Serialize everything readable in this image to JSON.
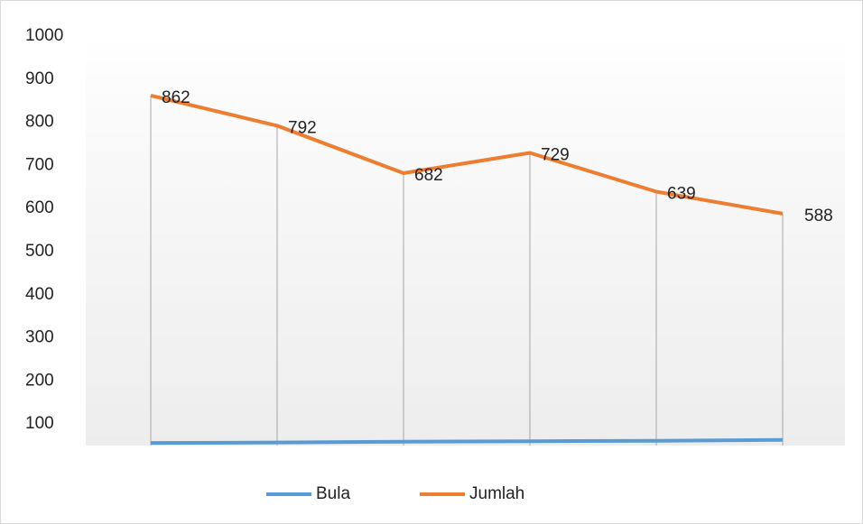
{
  "chart_data": {
    "type": "line",
    "categories": [
      null,
      null,
      null,
      null,
      null,
      null
    ],
    "series": [
      {
        "name": "Bula",
        "color": "#5b9bd5",
        "values": [
          56,
          57,
          59,
          60,
          61,
          63
        ]
      },
      {
        "name": "Jumlah",
        "color": "#ed7d31",
        "values": [
          862,
          792,
          682,
          729,
          639,
          588
        ]
      }
    ],
    "ylim": [
      50,
      1000
    ],
    "yticks": [
      100,
      200,
      300,
      400,
      500,
      600,
      700,
      800,
      900,
      1000
    ],
    "drop_lines": true,
    "legend": "bottom"
  }
}
